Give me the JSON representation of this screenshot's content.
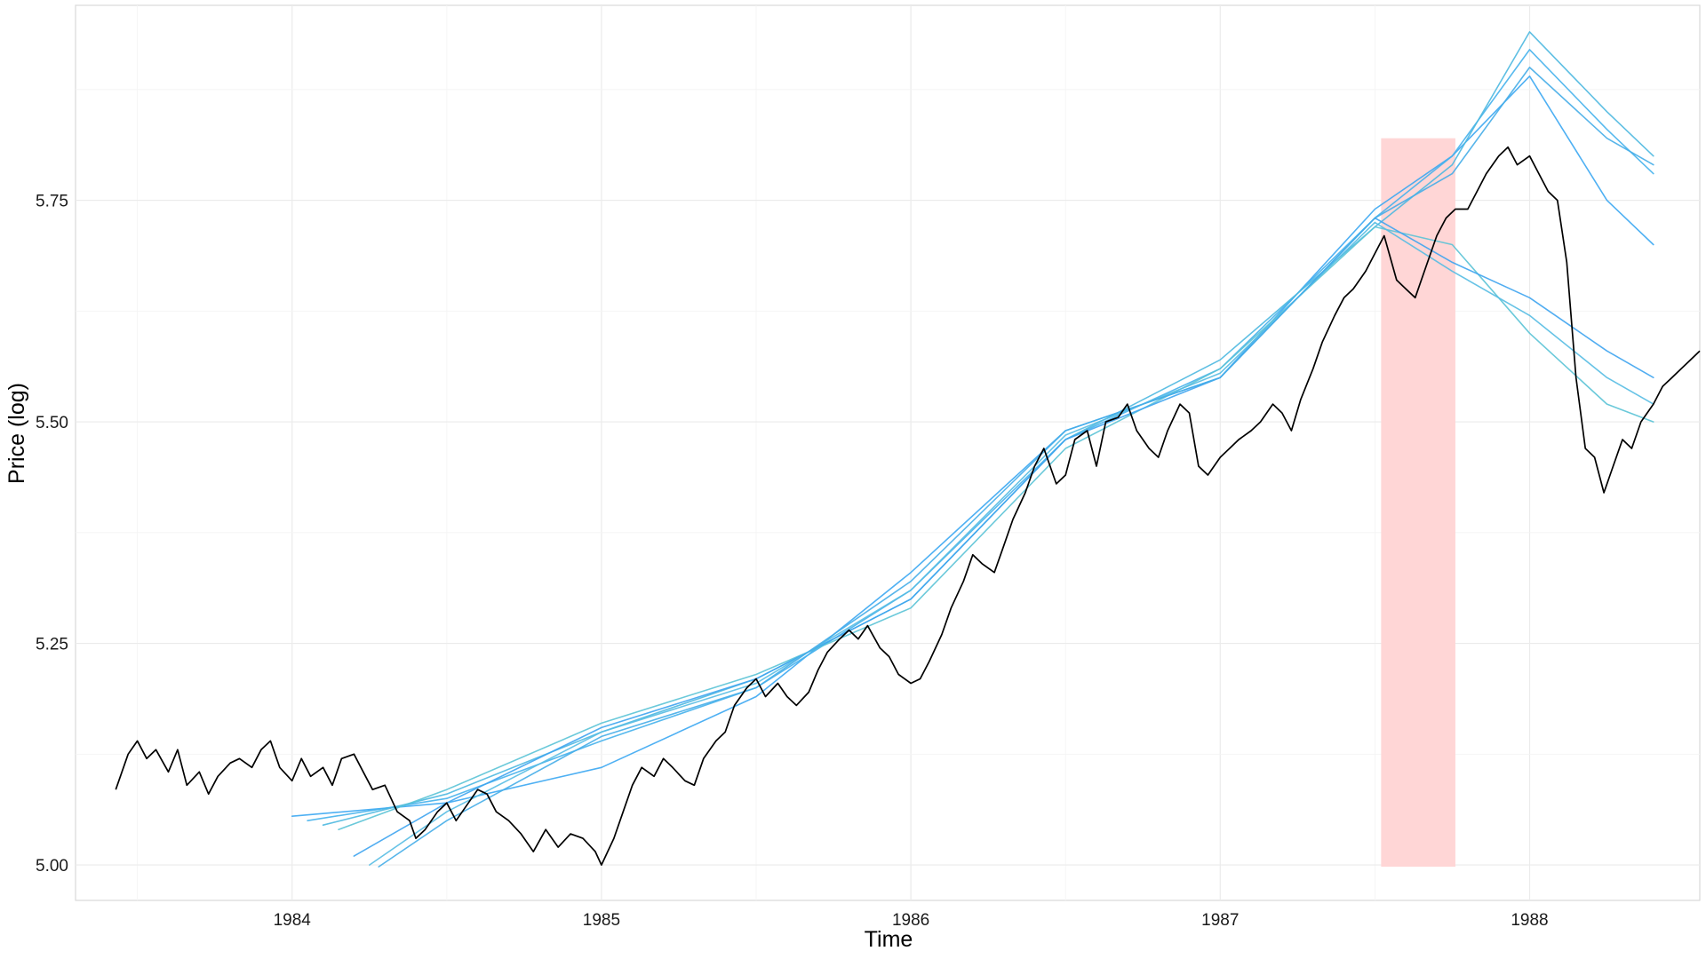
{
  "chart_data": {
    "type": "line",
    "title": "",
    "xlabel": "Time",
    "ylabel": "Price (log)",
    "xlim": [
      1983.3,
      1988.55
    ],
    "ylim": [
      4.96,
      5.97
    ],
    "x_ticks": [
      {
        "value": 1984,
        "label": "1984"
      },
      {
        "value": 1985,
        "label": "1985"
      },
      {
        "value": 1986,
        "label": "1986"
      },
      {
        "value": 1987,
        "label": "1987"
      },
      {
        "value": 1988,
        "label": "1988"
      }
    ],
    "y_ticks": [
      {
        "value": 5.0,
        "label": "5.00"
      },
      {
        "value": 5.25,
        "label": "5.25"
      },
      {
        "value": 5.5,
        "label": "5.50"
      },
      {
        "value": 5.75,
        "label": "5.75"
      }
    ],
    "grid": true,
    "legend": "none",
    "highlight_region": {
      "x0": 1987.52,
      "x1": 1987.76,
      "y0": 4.998,
      "y1": 5.82,
      "color": "#ffd6d6"
    },
    "price_series": {
      "name": "",
      "color": "#000000",
      "points": [
        [
          1983.43,
          5.085
        ],
        [
          1983.47,
          5.125
        ],
        [
          1983.5,
          5.14
        ],
        [
          1983.53,
          5.12
        ],
        [
          1983.56,
          5.13
        ],
        [
          1983.6,
          5.105
        ],
        [
          1983.63,
          5.13
        ],
        [
          1983.66,
          5.09
        ],
        [
          1983.7,
          5.105
        ],
        [
          1983.73,
          5.08
        ],
        [
          1983.76,
          5.1
        ],
        [
          1983.8,
          5.115
        ],
        [
          1983.83,
          5.12
        ],
        [
          1983.87,
          5.11
        ],
        [
          1983.9,
          5.13
        ],
        [
          1983.93,
          5.14
        ],
        [
          1983.96,
          5.11
        ],
        [
          1984.0,
          5.095
        ],
        [
          1984.03,
          5.12
        ],
        [
          1984.06,
          5.1
        ],
        [
          1984.1,
          5.11
        ],
        [
          1984.13,
          5.09
        ],
        [
          1984.16,
          5.12
        ],
        [
          1984.2,
          5.125
        ],
        [
          1984.23,
          5.105
        ],
        [
          1984.26,
          5.085
        ],
        [
          1984.3,
          5.09
        ],
        [
          1984.34,
          5.06
        ],
        [
          1984.38,
          5.05
        ],
        [
          1984.4,
          5.03
        ],
        [
          1984.43,
          5.04
        ],
        [
          1984.47,
          5.06
        ],
        [
          1984.5,
          5.07
        ],
        [
          1984.53,
          5.05
        ],
        [
          1984.56,
          5.065
        ],
        [
          1984.6,
          5.085
        ],
        [
          1984.63,
          5.08
        ],
        [
          1984.66,
          5.06
        ],
        [
          1984.7,
          5.05
        ],
        [
          1984.74,
          5.035
        ],
        [
          1984.78,
          5.015
        ],
        [
          1984.82,
          5.04
        ],
        [
          1984.86,
          5.02
        ],
        [
          1984.9,
          5.035
        ],
        [
          1984.94,
          5.03
        ],
        [
          1984.98,
          5.015
        ],
        [
          1985.0,
          5.0
        ],
        [
          1985.04,
          5.03
        ],
        [
          1985.07,
          5.06
        ],
        [
          1985.1,
          5.09
        ],
        [
          1985.13,
          5.11
        ],
        [
          1985.17,
          5.1
        ],
        [
          1985.2,
          5.12
        ],
        [
          1985.23,
          5.11
        ],
        [
          1985.27,
          5.095
        ],
        [
          1985.3,
          5.09
        ],
        [
          1985.33,
          5.12
        ],
        [
          1985.37,
          5.14
        ],
        [
          1985.4,
          5.15
        ],
        [
          1985.43,
          5.18
        ],
        [
          1985.47,
          5.2
        ],
        [
          1985.5,
          5.21
        ],
        [
          1985.53,
          5.19
        ],
        [
          1985.57,
          5.205
        ],
        [
          1985.6,
          5.19
        ],
        [
          1985.63,
          5.18
        ],
        [
          1985.67,
          5.195
        ],
        [
          1985.7,
          5.22
        ],
        [
          1985.73,
          5.24
        ],
        [
          1985.77,
          5.255
        ],
        [
          1985.8,
          5.265
        ],
        [
          1985.83,
          5.255
        ],
        [
          1985.86,
          5.27
        ],
        [
          1985.9,
          5.245
        ],
        [
          1985.93,
          5.235
        ],
        [
          1985.96,
          5.215
        ],
        [
          1986.0,
          5.205
        ],
        [
          1986.03,
          5.21
        ],
        [
          1986.06,
          5.23
        ],
        [
          1986.1,
          5.26
        ],
        [
          1986.13,
          5.29
        ],
        [
          1986.17,
          5.32
        ],
        [
          1986.2,
          5.35
        ],
        [
          1986.23,
          5.34
        ],
        [
          1986.27,
          5.33
        ],
        [
          1986.3,
          5.36
        ],
        [
          1986.33,
          5.39
        ],
        [
          1986.37,
          5.42
        ],
        [
          1986.4,
          5.45
        ],
        [
          1986.43,
          5.47
        ],
        [
          1986.47,
          5.43
        ],
        [
          1986.5,
          5.44
        ],
        [
          1986.53,
          5.48
        ],
        [
          1986.57,
          5.49
        ],
        [
          1986.6,
          5.45
        ],
        [
          1986.63,
          5.5
        ],
        [
          1986.67,
          5.505
        ],
        [
          1986.7,
          5.52
        ],
        [
          1986.73,
          5.49
        ],
        [
          1986.77,
          5.47
        ],
        [
          1986.8,
          5.46
        ],
        [
          1986.83,
          5.49
        ],
        [
          1986.87,
          5.52
        ],
        [
          1986.9,
          5.51
        ],
        [
          1986.93,
          5.45
        ],
        [
          1986.96,
          5.44
        ],
        [
          1987.0,
          5.46
        ],
        [
          1987.03,
          5.47
        ],
        [
          1987.06,
          5.48
        ],
        [
          1987.1,
          5.49
        ],
        [
          1987.13,
          5.5
        ],
        [
          1987.17,
          5.52
        ],
        [
          1987.2,
          5.51
        ],
        [
          1987.23,
          5.49
        ],
        [
          1987.26,
          5.525
        ],
        [
          1987.3,
          5.56
        ],
        [
          1987.33,
          5.59
        ],
        [
          1987.37,
          5.62
        ],
        [
          1987.4,
          5.64
        ],
        [
          1987.43,
          5.65
        ],
        [
          1987.47,
          5.67
        ],
        [
          1987.5,
          5.69
        ],
        [
          1987.53,
          5.71
        ],
        [
          1987.57,
          5.66
        ],
        [
          1987.6,
          5.65
        ],
        [
          1987.63,
          5.64
        ],
        [
          1987.66,
          5.67
        ],
        [
          1987.7,
          5.71
        ],
        [
          1987.73,
          5.73
        ],
        [
          1987.76,
          5.74
        ],
        [
          1987.8,
          5.74
        ],
        [
          1987.83,
          5.76
        ],
        [
          1987.86,
          5.78
        ],
        [
          1987.9,
          5.8
        ],
        [
          1987.93,
          5.81
        ],
        [
          1987.96,
          5.79
        ],
        [
          1988.0,
          5.8
        ],
        [
          1988.03,
          5.78
        ],
        [
          1988.06,
          5.76
        ],
        [
          1988.09,
          5.75
        ],
        [
          1988.12,
          5.68
        ],
        [
          1988.15,
          5.55
        ],
        [
          1988.18,
          5.47
        ],
        [
          1988.21,
          5.46
        ],
        [
          1988.24,
          5.42
        ],
        [
          1988.27,
          5.45
        ],
        [
          1988.3,
          5.48
        ],
        [
          1988.33,
          5.47
        ],
        [
          1988.36,
          5.5
        ],
        [
          1988.4,
          5.52
        ],
        [
          1988.43,
          5.54
        ],
        [
          1988.46,
          5.55
        ],
        [
          1988.49,
          5.56
        ],
        [
          1988.52,
          5.57
        ],
        [
          1988.55,
          5.58
        ]
      ]
    },
    "forecast_series": [
      {
        "color": "#3ba7f2",
        "points": [
          [
            1984.0,
            5.055
          ],
          [
            1984.5,
            5.07
          ],
          [
            1985.0,
            5.11
          ],
          [
            1985.5,
            5.19
          ],
          [
            1986.0,
            5.33
          ],
          [
            1986.5,
            5.49
          ],
          [
            1987.0,
            5.55
          ],
          [
            1987.5,
            5.74
          ],
          [
            1987.75,
            5.8
          ],
          [
            1988.0,
            5.89
          ],
          [
            1988.25,
            5.75
          ],
          [
            1988.4,
            5.7
          ]
        ]
      },
      {
        "color": "#45b1ec",
        "points": [
          [
            1984.05,
            5.05
          ],
          [
            1984.5,
            5.075
          ],
          [
            1985.0,
            5.14
          ],
          [
            1985.5,
            5.2
          ],
          [
            1986.0,
            5.31
          ],
          [
            1986.5,
            5.48
          ],
          [
            1987.0,
            5.56
          ],
          [
            1987.5,
            5.73
          ],
          [
            1987.75,
            5.8
          ],
          [
            1988.0,
            5.92
          ],
          [
            1988.25,
            5.83
          ],
          [
            1988.4,
            5.78
          ]
        ]
      },
      {
        "color": "#4db8e0",
        "points": [
          [
            1984.1,
            5.045
          ],
          [
            1984.5,
            5.08
          ],
          [
            1985.0,
            5.15
          ],
          [
            1985.5,
            5.21
          ],
          [
            1986.0,
            5.3
          ],
          [
            1986.5,
            5.48
          ],
          [
            1987.0,
            5.57
          ],
          [
            1987.5,
            5.72
          ],
          [
            1987.75,
            5.79
          ],
          [
            1988.0,
            5.94
          ],
          [
            1988.25,
            5.85
          ],
          [
            1988.4,
            5.8
          ]
        ]
      },
      {
        "color": "#5bc3d6",
        "points": [
          [
            1984.15,
            5.04
          ],
          [
            1984.5,
            5.085
          ],
          [
            1985.0,
            5.16
          ],
          [
            1985.5,
            5.215
          ],
          [
            1986.0,
            5.29
          ],
          [
            1986.5,
            5.47
          ],
          [
            1987.0,
            5.56
          ],
          [
            1987.5,
            5.72
          ],
          [
            1987.75,
            5.7
          ],
          [
            1988.0,
            5.6
          ],
          [
            1988.25,
            5.52
          ],
          [
            1988.4,
            5.5
          ]
        ]
      },
      {
        "color": "#3ea4ef",
        "points": [
          [
            1984.2,
            5.01
          ],
          [
            1984.5,
            5.07
          ],
          [
            1985.0,
            5.155
          ],
          [
            1985.5,
            5.21
          ],
          [
            1986.0,
            5.3
          ],
          [
            1986.5,
            5.48
          ],
          [
            1987.0,
            5.55
          ],
          [
            1987.5,
            5.73
          ],
          [
            1987.75,
            5.68
          ],
          [
            1988.0,
            5.64
          ],
          [
            1988.25,
            5.58
          ],
          [
            1988.4,
            5.55
          ]
        ]
      },
      {
        "color": "#57bde3",
        "points": [
          [
            1984.25,
            5.0
          ],
          [
            1984.5,
            5.06
          ],
          [
            1985.0,
            5.15
          ],
          [
            1985.5,
            5.205
          ],
          [
            1986.0,
            5.31
          ],
          [
            1986.5,
            5.485
          ],
          [
            1987.0,
            5.555
          ],
          [
            1987.5,
            5.725
          ],
          [
            1987.75,
            5.67
          ],
          [
            1988.0,
            5.62
          ],
          [
            1988.25,
            5.55
          ],
          [
            1988.4,
            5.52
          ]
        ]
      },
      {
        "color": "#45ade8",
        "points": [
          [
            1984.28,
            4.998
          ],
          [
            1984.5,
            5.05
          ],
          [
            1985.0,
            5.145
          ],
          [
            1985.5,
            5.2
          ],
          [
            1986.0,
            5.32
          ],
          [
            1986.5,
            5.49
          ],
          [
            1987.0,
            5.55
          ],
          [
            1987.5,
            5.73
          ],
          [
            1987.75,
            5.78
          ],
          [
            1988.0,
            5.9
          ],
          [
            1988.25,
            5.82
          ],
          [
            1988.4,
            5.79
          ]
        ]
      }
    ]
  }
}
